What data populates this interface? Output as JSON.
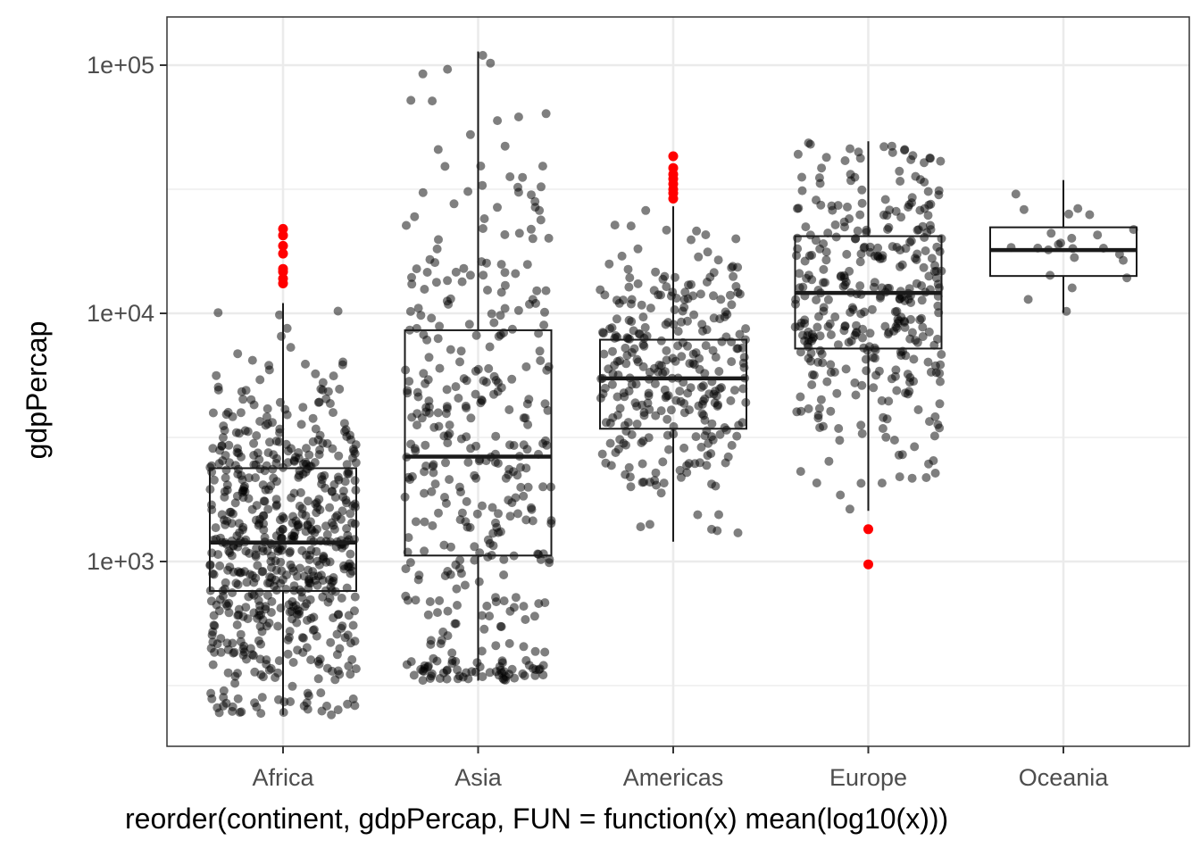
{
  "chart_data": {
    "type": "scatter",
    "subtype": "boxplot-with-jittered-points",
    "xlabel": "reorder(continent, gdpPercap, FUN = function(x) mean(log10(x)))",
    "ylabel": "gdpPercap",
    "y_scale": "log10",
    "ylim": [
      200,
      150000
    ],
    "y_ticks": [
      {
        "value": 1000,
        "label": "1e+03"
      },
      {
        "value": 10000,
        "label": "1e+04"
      },
      {
        "value": 100000,
        "label": "1e+05"
      }
    ],
    "grid": true,
    "colors": {
      "point": "#000000",
      "outlier": "#ff0000",
      "box": "#1a1a1a",
      "grid": "#ebebeb",
      "panel_border": "#333333"
    },
    "categories": [
      "Africa",
      "Asia",
      "Americas",
      "Europe",
      "Oceania"
    ],
    "boxes": [
      {
        "category": "Africa",
        "lower_whisker": 241,
        "q1": 761,
        "median": 1192,
        "q3": 2377,
        "upper_whisker": 11000,
        "n_points": 624
      },
      {
        "category": "Asia",
        "lower_whisker": 331,
        "q1": 1057,
        "median": 2647,
        "q3": 8549,
        "upper_whisker": 113523,
        "n_points": 396
      },
      {
        "category": "Americas",
        "lower_whisker": 1202,
        "q1": 3428,
        "median": 5466,
        "q3": 7830,
        "upper_whisker": 27000,
        "n_points": 300
      },
      {
        "category": "Europe",
        "lower_whisker": 1600,
        "q1": 7213,
        "median": 12082,
        "q3": 20461,
        "upper_whisker": 49357,
        "n_points": 360
      },
      {
        "category": "Oceania",
        "lower_whisker": 10040,
        "q1": 14142,
        "median": 17983,
        "q3": 22214,
        "upper_whisker": 34435,
        "n_points": 24
      }
    ],
    "outliers": [
      {
        "category": "Africa",
        "values": [
          13200,
          13800,
          14700,
          15100,
          17400,
          18700,
          20600,
          21900
        ]
      },
      {
        "category": "Americas",
        "values": [
          29000,
          30500,
          31600,
          33200,
          34800,
          36300,
          38500,
          42952
        ]
      },
      {
        "category": "Europe",
        "values": [
          974,
          1350
        ]
      }
    ]
  }
}
